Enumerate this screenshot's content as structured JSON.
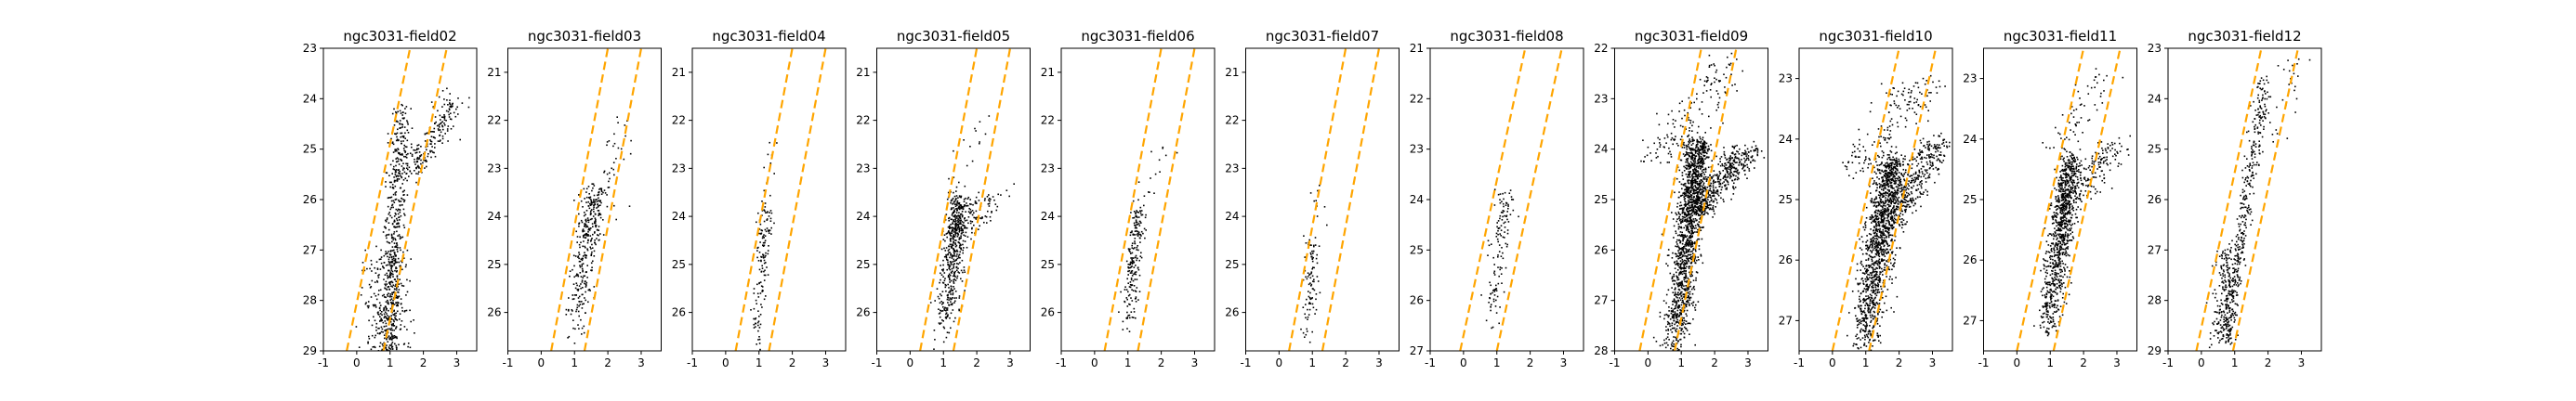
{
  "colors": {
    "points": "#000000",
    "guides": "#ffa500",
    "frame": "#000000"
  },
  "chart_data": [
    {
      "type": "scatter",
      "title": "ngc3031-field02",
      "xlim": [
        -1,
        3.6
      ],
      "ylim": [
        29,
        23
      ],
      "xticks": [
        "-1",
        "0",
        "1",
        "2",
        "3"
      ],
      "yticks": [
        "23",
        "24",
        "25",
        "26",
        "27",
        "28",
        "29"
      ],
      "guide_lines": [
        {
          "x": [
            -0.3,
            1.6
          ],
          "y": [
            29,
            23
          ]
        },
        {
          "x": [
            0.8,
            2.7
          ],
          "y": [
            29,
            23
          ]
        }
      ],
      "clusters": [
        {
          "n": 520,
          "x_start": 0.9,
          "x_end": 1.35,
          "y_range": [
            24.2,
            29.0
          ],
          "spread": 0.28,
          "power": 1.0
        },
        {
          "n": 260,
          "x_start": 0.9,
          "x_end": 0.9,
          "y_range": [
            27.0,
            29.0
          ],
          "spread": 0.6,
          "power": 1.0
        },
        {
          "n": 200,
          "x_start": 1.5,
          "x_end": 3.0,
          "y_range": [
            24.0,
            25.5
          ],
          "spread": 0.4,
          "power": 1.0
        }
      ]
    },
    {
      "type": "scatter",
      "title": "ngc3031-field03",
      "xlim": [
        -1,
        3.6
      ],
      "ylim": [
        26.8,
        20.5
      ],
      "xticks": [
        "-1",
        "0",
        "1",
        "2",
        "3"
      ],
      "yticks": [
        "21",
        "22",
        "23",
        "24",
        "25",
        "26"
      ],
      "guide_lines": [
        {
          "x": [
            0.3,
            2.0
          ],
          "y": [
            26.8,
            20.5
          ]
        },
        {
          "x": [
            1.3,
            3.0
          ],
          "y": [
            26.8,
            20.5
          ]
        }
      ],
      "clusters": [
        {
          "n": 320,
          "x_start": 0.9,
          "x_end": 1.6,
          "y_range": [
            23.4,
            26.8
          ],
          "spread": 0.32,
          "power": 0.6
        },
        {
          "n": 50,
          "x_start": 1.5,
          "x_end": 2.4,
          "y_range": [
            22.0,
            24.5
          ],
          "spread": 0.45,
          "power": 1.0
        }
      ]
    },
    {
      "type": "scatter",
      "title": "ngc3031-field04",
      "xlim": [
        -1,
        3.6
      ],
      "ylim": [
        26.8,
        20.5
      ],
      "xticks": [
        "-1",
        "0",
        "1",
        "2",
        "3"
      ],
      "yticks": [
        "21",
        "22",
        "23",
        "24",
        "25",
        "26"
      ],
      "guide_lines": [
        {
          "x": [
            0.3,
            2.0
          ],
          "y": [
            26.8,
            20.5
          ]
        },
        {
          "x": [
            1.3,
            3.0
          ],
          "y": [
            26.8,
            20.5
          ]
        }
      ],
      "clusters": [
        {
          "n": 130,
          "x_start": 0.9,
          "x_end": 1.2,
          "y_range": [
            23.8,
            26.8
          ],
          "spread": 0.18,
          "power": 0.6
        },
        {
          "n": 15,
          "x_start": 1.0,
          "x_end": 1.4,
          "y_range": [
            22.5,
            24.0
          ],
          "spread": 0.3,
          "power": 1.0
        }
      ]
    },
    {
      "type": "scatter",
      "title": "ngc3031-field05",
      "xlim": [
        -1,
        3.6
      ],
      "ylim": [
        26.8,
        20.5
      ],
      "xticks": [
        "-1",
        "0",
        "1",
        "2",
        "3"
      ],
      "yticks": [
        "21",
        "22",
        "23",
        "24",
        "25",
        "26"
      ],
      "guide_lines": [
        {
          "x": [
            0.3,
            2.0
          ],
          "y": [
            26.8,
            20.5
          ]
        },
        {
          "x": [
            1.3,
            3.0
          ],
          "y": [
            26.8,
            20.5
          ]
        }
      ],
      "clusters": [
        {
          "n": 520,
          "x_start": 0.9,
          "x_end": 1.5,
          "y_range": [
            23.6,
            26.8
          ],
          "spread": 0.3,
          "power": 0.5
        },
        {
          "n": 90,
          "x_start": 1.4,
          "x_end": 2.5,
          "y_range": [
            23.5,
            24.5
          ],
          "spread": 0.5,
          "power": 1.0
        },
        {
          "n": 20,
          "x_start": 1.3,
          "x_end": 2.2,
          "y_range": [
            21.8,
            23.5
          ],
          "spread": 0.4,
          "power": 1.0
        }
      ]
    },
    {
      "type": "scatter",
      "title": "ngc3031-field06",
      "xlim": [
        -1,
        3.6
      ],
      "ylim": [
        26.8,
        20.5
      ],
      "xticks": [
        "-1",
        "0",
        "1",
        "2",
        "3"
      ],
      "yticks": [
        "21",
        "22",
        "23",
        "24",
        "25",
        "26"
      ],
      "guide_lines": [
        {
          "x": [
            0.3,
            2.0
          ],
          "y": [
            26.8,
            20.5
          ]
        },
        {
          "x": [
            1.3,
            3.0
          ],
          "y": [
            26.8,
            20.5
          ]
        }
      ],
      "clusters": [
        {
          "n": 190,
          "x_start": 0.9,
          "x_end": 1.3,
          "y_range": [
            23.8,
            26.8
          ],
          "spread": 0.22,
          "power": 0.55
        },
        {
          "n": 25,
          "x_start": 1.2,
          "x_end": 2.0,
          "y_range": [
            22.5,
            24.2
          ],
          "spread": 0.35,
          "power": 1.0
        }
      ]
    },
    {
      "type": "scatter",
      "title": "ngc3031-field07",
      "xlim": [
        -1,
        3.6
      ],
      "ylim": [
        26.8,
        20.5
      ],
      "xticks": [
        "-1",
        "0",
        "1",
        "2",
        "3"
      ],
      "yticks": [
        "21",
        "22",
        "23",
        "24",
        "25",
        "26"
      ],
      "guide_lines": [
        {
          "x": [
            0.3,
            2.0
          ],
          "y": [
            26.8,
            20.5
          ]
        },
        {
          "x": [
            1.3,
            3.0
          ],
          "y": [
            26.8,
            20.5
          ]
        }
      ],
      "clusters": [
        {
          "n": 90,
          "x_start": 0.8,
          "x_end": 1.0,
          "y_range": [
            24.5,
            26.8
          ],
          "spread": 0.2,
          "power": 0.6
        },
        {
          "n": 10,
          "x_start": 1.0,
          "x_end": 1.3,
          "y_range": [
            23.0,
            24.5
          ],
          "spread": 0.3,
          "power": 1.0
        }
      ]
    },
    {
      "type": "scatter",
      "title": "ngc3031-field08",
      "xlim": [
        -1,
        3.6
      ],
      "ylim": [
        27,
        21
      ],
      "xticks": [
        "-1",
        "0",
        "1",
        "2",
        "3"
      ],
      "yticks": [
        "21",
        "22",
        "23",
        "24",
        "25",
        "26",
        "27"
      ],
      "guide_lines": [
        {
          "x": [
            -0.1,
            1.85
          ],
          "y": [
            27,
            21
          ]
        },
        {
          "x": [
            1.0,
            2.95
          ],
          "y": [
            27,
            21
          ]
        }
      ],
      "clusters": [
        {
          "n": 130,
          "x_start": 0.8,
          "x_end": 1.2,
          "y_range": [
            23.8,
            26.6
          ],
          "spread": 0.25,
          "power": 0.7
        }
      ]
    },
    {
      "type": "scatter",
      "title": "ngc3031-field09",
      "xlim": [
        -1,
        3.6
      ],
      "ylim": [
        28,
        22
      ],
      "xticks": [
        "-1",
        "0",
        "1",
        "2",
        "3"
      ],
      "yticks": [
        "22",
        "23",
        "24",
        "25",
        "26",
        "27",
        "28"
      ],
      "guide_lines": [
        {
          "x": [
            -0.25,
            1.6
          ],
          "y": [
            28,
            22
          ]
        },
        {
          "x": [
            0.8,
            2.65
          ],
          "y": [
            28,
            22
          ]
        }
      ],
      "clusters": [
        {
          "n": 1400,
          "x_start": 0.8,
          "x_end": 1.5,
          "y_range": [
            23.8,
            28.0
          ],
          "spread": 0.38,
          "power": 0.75
        },
        {
          "n": 500,
          "x_start": 1.3,
          "x_end": 2.9,
          "y_range": [
            24.0,
            25.3
          ],
          "spread": 0.55,
          "power": 1.0
        },
        {
          "n": 150,
          "x_start": 0.3,
          "x_end": 2.3,
          "y_range": [
            22.2,
            24.3
          ],
          "spread": 0.7,
          "power": 1.0
        }
      ]
    },
    {
      "type": "scatter",
      "title": "ngc3031-field10",
      "xlim": [
        -1,
        3.6
      ],
      "ylim": [
        27.5,
        22.5
      ],
      "xticks": [
        "-1",
        "0",
        "1",
        "2",
        "3"
      ],
      "yticks": [
        "23",
        "24",
        "25",
        "26",
        "27"
      ],
      "guide_lines": [
        {
          "x": [
            0.0,
            2.0
          ],
          "y": [
            27.5,
            22.5
          ]
        },
        {
          "x": [
            1.1,
            3.1
          ],
          "y": [
            27.5,
            22.5
          ]
        }
      ],
      "clusters": [
        {
          "n": 1300,
          "x_start": 0.9,
          "x_end": 1.8,
          "y_range": [
            24.3,
            27.5
          ],
          "spread": 0.42,
          "power": 0.7
        },
        {
          "n": 380,
          "x_start": 1.6,
          "x_end": 3.2,
          "y_range": [
            24.0,
            25.4
          ],
          "spread": 0.55,
          "power": 1.0
        },
        {
          "n": 150,
          "x_start": 0.5,
          "x_end": 2.8,
          "y_range": [
            23.0,
            24.5
          ],
          "spread": 0.6,
          "power": 1.0
        }
      ]
    },
    {
      "type": "scatter",
      "title": "ngc3031-field11",
      "xlim": [
        -1,
        3.6
      ],
      "ylim": [
        27.5,
        22.5
      ],
      "xticks": [
        "-1",
        "0",
        "1",
        "2",
        "3"
      ],
      "yticks": [
        "23",
        "24",
        "25",
        "26",
        "27"
      ],
      "guide_lines": [
        {
          "x": [
            0.0,
            2.0
          ],
          "y": [
            27.5,
            22.5
          ]
        },
        {
          "x": [
            1.1,
            3.1
          ],
          "y": [
            27.5,
            22.5
          ]
        }
      ],
      "clusters": [
        {
          "n": 900,
          "x_start": 0.9,
          "x_end": 1.6,
          "y_range": [
            24.3,
            27.2
          ],
          "spread": 0.32,
          "power": 0.7
        },
        {
          "n": 180,
          "x_start": 1.4,
          "x_end": 3.0,
          "y_range": [
            24.0,
            25.2
          ],
          "spread": 0.5,
          "power": 1.0
        },
        {
          "n": 60,
          "x_start": 1.0,
          "x_end": 2.6,
          "y_range": [
            22.8,
            24.3
          ],
          "spread": 0.5,
          "power": 1.0
        }
      ]
    },
    {
      "type": "scatter",
      "title": "ngc3031-field12",
      "xlim": [
        -1,
        3.6
      ],
      "ylim": [
        29,
        23
      ],
      "xticks": [
        "-1",
        "0",
        "1",
        "2",
        "3"
      ],
      "yticks": [
        "23",
        "24",
        "25",
        "26",
        "27",
        "28",
        "29"
      ],
      "guide_lines": [
        {
          "x": [
            -0.15,
            1.8
          ],
          "y": [
            29,
            23
          ]
        },
        {
          "x": [
            0.95,
            2.9
          ],
          "y": [
            29,
            23
          ]
        }
      ],
      "clusters": [
        {
          "n": 380,
          "x_start": 0.7,
          "x_end": 1.9,
          "y_range": [
            23.6,
            28.8
          ],
          "spread": 0.2,
          "power": 1.0
        },
        {
          "n": 200,
          "x_start": 0.6,
          "x_end": 0.8,
          "y_range": [
            27.0,
            28.8
          ],
          "spread": 0.35,
          "power": 1.0
        },
        {
          "n": 40,
          "x_start": 1.6,
          "x_end": 3.0,
          "y_range": [
            23.2,
            25.2
          ],
          "spread": 0.5,
          "power": 1.0
        }
      ]
    }
  ]
}
